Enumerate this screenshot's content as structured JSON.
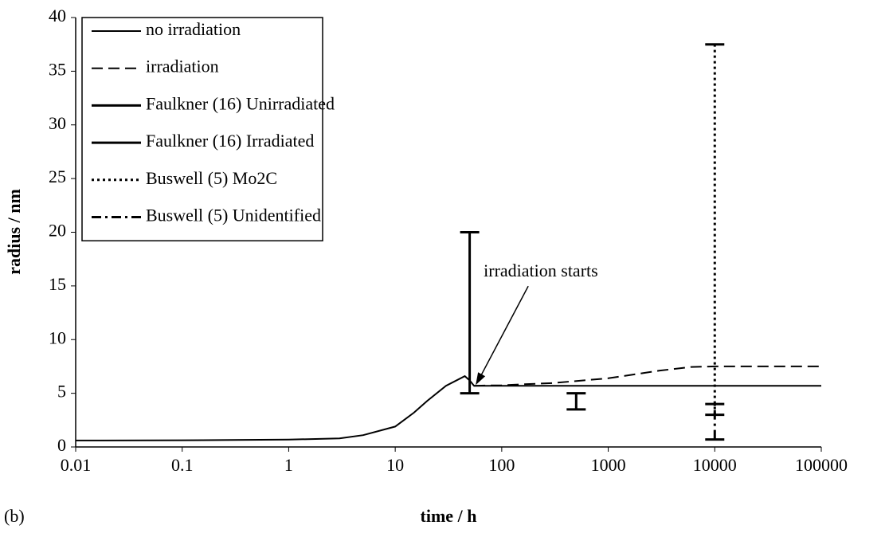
{
  "chart_data": {
    "type": "line",
    "label": "(b)",
    "x_label": "time / h",
    "y_label": "radius / nm",
    "log_x": true,
    "grid": false,
    "legend": "upper left",
    "xlim": [
      0.01,
      100000
    ],
    "xticks": [
      0.01,
      0.1,
      1,
      10,
      100,
      1000,
      10000,
      100000
    ],
    "ylim": [
      0,
      40
    ],
    "yticks": [
      0,
      5,
      10,
      15,
      20,
      25,
      30,
      35,
      40
    ],
    "series": [
      {
        "name": "no irradiation",
        "kind": "line",
        "style": "solid",
        "color": "#000000",
        "x": [
          0.01,
          0.1,
          1,
          3,
          5,
          10,
          15,
          20,
          30,
          45,
          50,
          55,
          100,
          1000,
          10000,
          100000
        ],
        "values": [
          0.6,
          0.62,
          0.68,
          0.8,
          1.1,
          1.9,
          3.2,
          4.3,
          5.7,
          6.6,
          6.2,
          5.7,
          5.7,
          5.7,
          5.7,
          5.7
        ]
      },
      {
        "name": "irradiation",
        "kind": "line",
        "style": "dashed",
        "color": "#000000",
        "x": [
          55,
          100,
          300,
          1000,
          3000,
          6000,
          10000,
          100000
        ],
        "values": [
          5.7,
          5.75,
          5.95,
          6.4,
          7.1,
          7.45,
          7.5,
          7.5
        ]
      },
      {
        "name": "Faulkner (16) Unirradiated",
        "kind": "range",
        "style": "solid",
        "color": "#000000",
        "x": [
          50
        ],
        "low": [
          5
        ],
        "high": [
          20
        ]
      },
      {
        "name": "Faulkner (16) Irradiated",
        "kind": "range",
        "style": "solid",
        "color": "#000000",
        "x": [
          500
        ],
        "low": [
          3.5
        ],
        "high": [
          5
        ]
      },
      {
        "name": "Buswell (5) Mo2C",
        "kind": "range",
        "style": "dotted",
        "color": "#000000",
        "x": [
          10000
        ],
        "low": [
          3
        ],
        "high": [
          37.5
        ]
      },
      {
        "name": "Buswell (5) Unidentified",
        "kind": "range",
        "style": "dashdot",
        "color": "#000000",
        "x": [
          10000
        ],
        "low": [
          0.7
        ],
        "high": [
          4
        ]
      }
    ],
    "annotations": [
      {
        "text": "irradiation starts",
        "x": 55,
        "y": 5.7
      }
    ]
  }
}
